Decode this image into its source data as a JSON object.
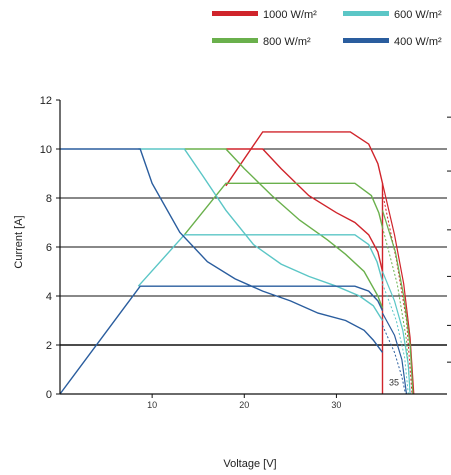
{
  "chart_data": {
    "type": "line",
    "xlabel": "Voltage [V]",
    "ylabel": "Current [A]",
    "xlim": [
      0,
      42
    ],
    "ylim": [
      0,
      12
    ],
    "x_ticks": [
      10,
      20,
      30
    ],
    "y_ticks": [
      0,
      2,
      4,
      6,
      8,
      10,
      12
    ],
    "grid": "horizontal",
    "legend_position": "top",
    "annotations": [
      {
        "text": "35",
        "x": 35.7,
        "y": 0.35
      }
    ],
    "series": [
      {
        "name": "1000 W/m²",
        "color": "#d0242b",
        "power_limit": [
          [
            18,
            10.0
          ],
          [
            22,
            10.0
          ],
          [
            24,
            9.2
          ],
          [
            27,
            8.1
          ],
          [
            30,
            7.4
          ],
          [
            32,
            7.0
          ],
          [
            33.5,
            6.5
          ],
          [
            34.5,
            5.8
          ],
          [
            35,
            5.0
          ]
        ],
        "current_limit": [
          [
            18,
            8.5
          ],
          [
            22,
            10.7
          ],
          [
            31.5,
            10.7
          ],
          [
            33.5,
            10.2
          ],
          [
            34.5,
            9.4
          ],
          [
            35,
            8.6
          ],
          [
            35,
            0
          ]
        ],
        "mpp_curve": [
          [
            35,
            8.6
          ],
          [
            36.3,
            6.5
          ],
          [
            37.3,
            4.5
          ],
          [
            38,
            2.3
          ],
          [
            38.4,
            0
          ]
        ],
        "dotted": [
          [
            35,
            8.2
          ],
          [
            36.5,
            5.5
          ],
          [
            37.6,
            3.0
          ],
          [
            38.2,
            0
          ]
        ]
      },
      {
        "name": "800 W/m²",
        "color": "#6ab04c",
        "power_limit": [
          [
            13.5,
            10.0
          ],
          [
            18,
            10.0
          ],
          [
            20,
            9.2
          ],
          [
            23,
            8.1
          ],
          [
            26,
            7.1
          ],
          [
            29,
            6.3
          ],
          [
            31,
            5.7
          ],
          [
            33,
            5.0
          ],
          [
            34.5,
            4.0
          ],
          [
            35,
            3.5
          ]
        ],
        "current_limit": [
          [
            13.5,
            6.5
          ],
          [
            18,
            8.6
          ],
          [
            32,
            8.6
          ],
          [
            33.8,
            8.1
          ],
          [
            34.6,
            7.4
          ],
          [
            35,
            6.8
          ]
        ],
        "mpp_curve": [
          [
            35,
            7.5
          ],
          [
            36.4,
            5.8
          ],
          [
            37.3,
            4.0
          ],
          [
            38.0,
            2.0
          ],
          [
            38.3,
            0
          ]
        ],
        "dotted": [
          [
            35,
            6.8
          ],
          [
            36.6,
            4.5
          ],
          [
            37.6,
            2.2
          ],
          [
            38.0,
            0
          ]
        ]
      },
      {
        "name": "600 W/m²",
        "color": "#5bc6c6",
        "power_limit": [
          [
            8.5,
            10.0
          ],
          [
            13.5,
            10.0
          ],
          [
            15.5,
            8.9
          ],
          [
            18,
            7.5
          ],
          [
            21,
            6.1
          ],
          [
            24,
            5.3
          ],
          [
            27,
            4.8
          ],
          [
            30,
            4.4
          ],
          [
            32.5,
            4.0
          ],
          [
            34,
            3.6
          ],
          [
            35,
            3.0
          ]
        ],
        "current_limit": [
          [
            8.5,
            4.4
          ],
          [
            13.5,
            6.5
          ],
          [
            32,
            6.5
          ],
          [
            33.5,
            6.1
          ],
          [
            34.4,
            5.4
          ],
          [
            35,
            4.6
          ]
        ],
        "mpp_curve": [
          [
            35,
            5.0
          ],
          [
            36.3,
            3.8
          ],
          [
            37.2,
            2.6
          ],
          [
            37.8,
            1.2
          ],
          [
            38.0,
            0
          ]
        ],
        "dotted": [
          [
            35,
            4.5
          ],
          [
            36.5,
            3.0
          ],
          [
            37.4,
            1.5
          ],
          [
            37.8,
            0
          ]
        ]
      },
      {
        "name": "400 W/m²",
        "color": "#2a5d9e",
        "power_limit": [
          [
            0,
            10.0
          ],
          [
            8.7,
            10.0
          ],
          [
            10,
            8.6
          ],
          [
            13,
            6.6
          ],
          [
            16,
            5.4
          ],
          [
            19,
            4.7
          ],
          [
            22,
            4.2
          ],
          [
            25,
            3.8
          ],
          [
            28,
            3.3
          ],
          [
            31,
            3.0
          ],
          [
            33,
            2.6
          ],
          [
            34,
            2.2
          ],
          [
            35,
            1.7
          ]
        ],
        "current_limit": [
          [
            0,
            0
          ],
          [
            8.7,
            4.4
          ],
          [
            32,
            4.4
          ],
          [
            33.5,
            4.2
          ],
          [
            34.5,
            3.8
          ],
          [
            35,
            3.4
          ]
        ],
        "mpp_curve": [
          [
            35,
            3.3
          ],
          [
            36.3,
            2.4
          ],
          [
            37.1,
            1.4
          ],
          [
            37.6,
            0
          ]
        ],
        "dotted": [
          [
            35,
            2.8
          ],
          [
            36.3,
            1.7
          ],
          [
            37.1,
            0.7
          ],
          [
            37.5,
            0
          ]
        ]
      }
    ]
  }
}
